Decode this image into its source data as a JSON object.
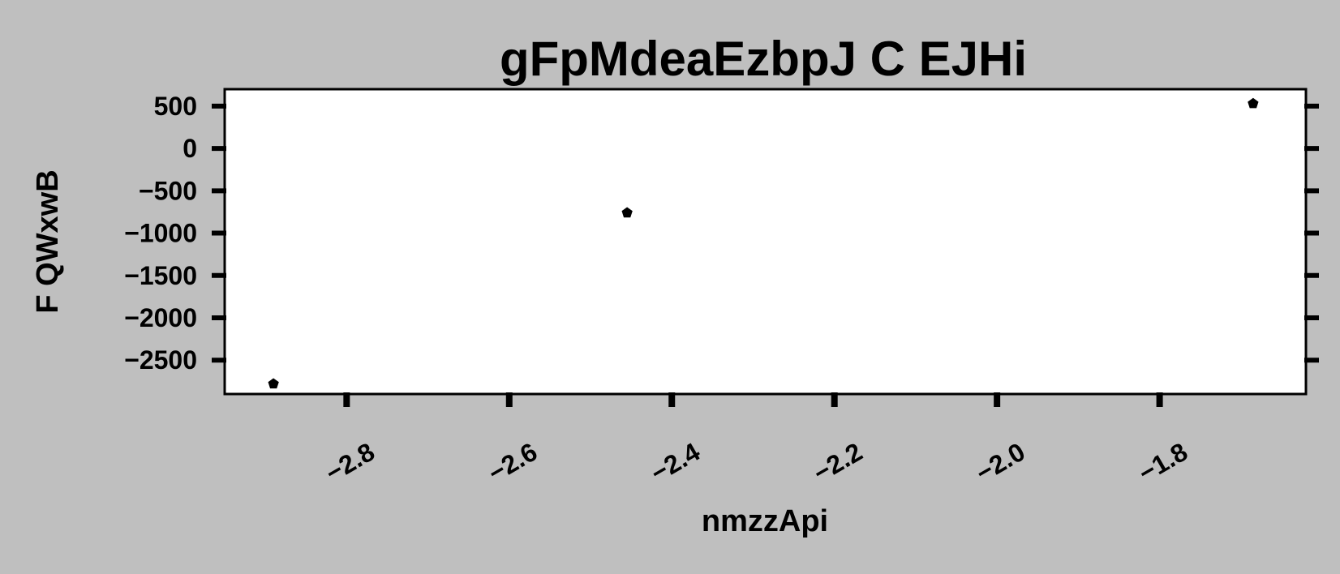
{
  "chart_data": {
    "type": "scatter",
    "title": "gFpMdeaEzbpJ  C EJHi",
    "xlabel": "nmzzApi",
    "ylabel": "F QWxwB",
    "xlim": [
      -2.95,
      -1.62
    ],
    "ylim": [
      -2900,
      700
    ],
    "xticks": [
      -2.8,
      -2.6,
      -2.4,
      -2.2,
      -2.0,
      -1.8
    ],
    "xtick_labels": [
      "−2.8",
      "−2.6",
      "−2.4",
      "−2.2",
      "−2.0",
      "−1.8"
    ],
    "yticks": [
      500,
      0,
      -500,
      -1000,
      -1500,
      -2000,
      -2500
    ],
    "ytick_labels": [
      "500",
      "0",
      "−500",
      "−1000",
      "−1500",
      "−2000",
      "−2500"
    ],
    "grid": false,
    "marker": "pentagon",
    "colors": {
      "background": "#bfbfbf",
      "plot_area": "#ffffff",
      "marker": "#000000"
    },
    "points": [
      {
        "x": -2.89,
        "y": -2780
      },
      {
        "x": -2.455,
        "y": -760
      },
      {
        "x": -1.685,
        "y": 530
      }
    ]
  }
}
